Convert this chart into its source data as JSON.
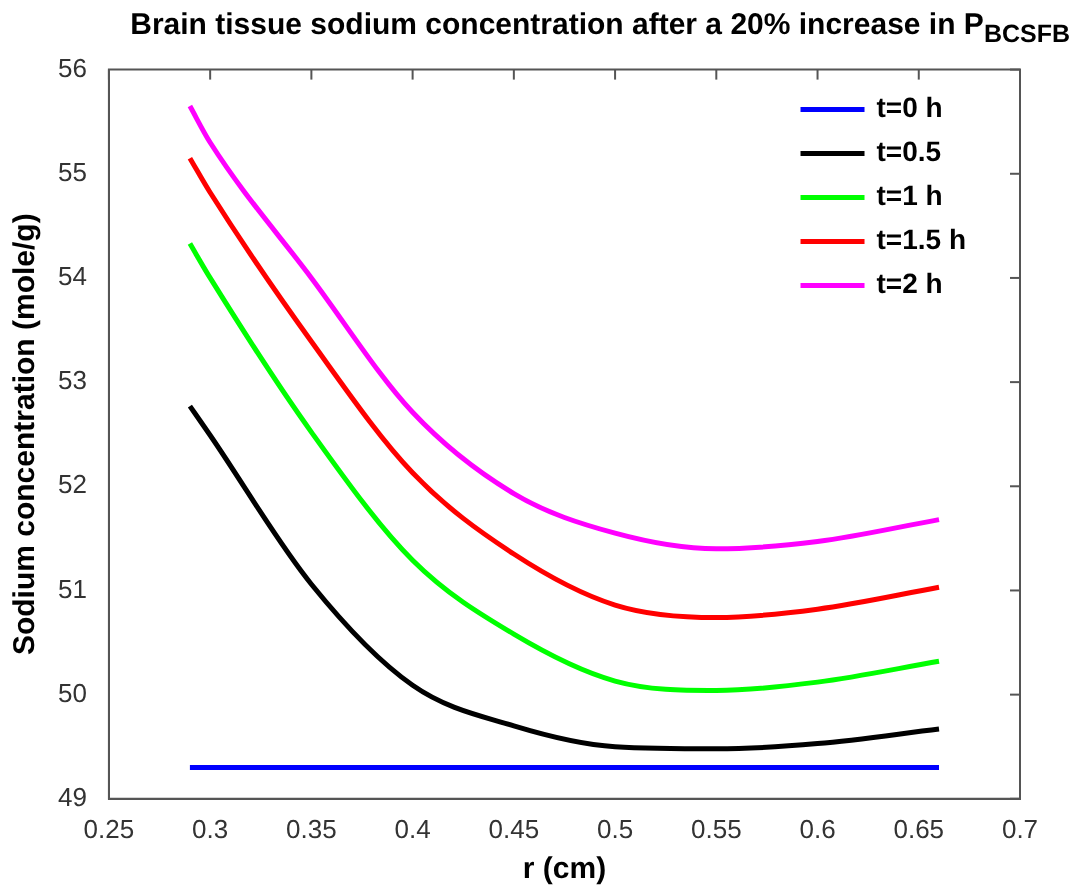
{
  "chart_data": {
    "type": "line",
    "title": "Brain tissue sodium concentration after a 20% increase in P$_{BCSFB}$",
    "xlabel": "r (cm)",
    "ylabel": "Sodium concentration (mole/g)",
    "x": [
      0.29,
      0.3,
      0.35,
      0.4,
      0.45,
      0.5,
      0.55,
      0.6,
      0.66
    ],
    "series": [
      {
        "name": "t=0 h",
        "color": "#0000ff",
        "values": [
          49.3,
          49.3,
          49.3,
          49.3,
          49.3,
          49.3,
          49.3,
          49.3,
          49.3
        ]
      },
      {
        "name": "t=0.5",
        "color": "#000000",
        "values": [
          52.77,
          52.49,
          51.06,
          50.09,
          49.7,
          49.5,
          49.48,
          49.53,
          49.67
        ]
      },
      {
        "name": "t=1 h",
        "color": "#00ff00",
        "values": [
          54.33,
          54.0,
          52.52,
          51.29,
          50.58,
          50.13,
          50.04,
          50.12,
          50.32
        ]
      },
      {
        "name": "t=1.5 h",
        "color": "#ff0000",
        "values": [
          55.15,
          54.82,
          53.39,
          52.13,
          51.35,
          50.86,
          50.74,
          50.82,
          51.03
        ]
      },
      {
        "name": "t=2 h",
        "color": "#ff00ff",
        "values": [
          55.65,
          55.3,
          54.0,
          52.71,
          51.93,
          51.55,
          51.4,
          51.47,
          51.68
        ]
      }
    ],
    "xlim": [
      0.25,
      0.7
    ],
    "xticks": [
      0.25,
      0.3,
      0.35,
      0.4,
      0.45,
      0.5,
      0.55,
      0.6,
      0.65,
      0.7
    ],
    "ylim": [
      49,
      56
    ],
    "yticks": [
      49,
      50,
      51,
      52,
      53,
      54,
      55,
      56
    ],
    "grid": false,
    "legend": "top right",
    "marker": "none",
    "line_style": "solid"
  }
}
